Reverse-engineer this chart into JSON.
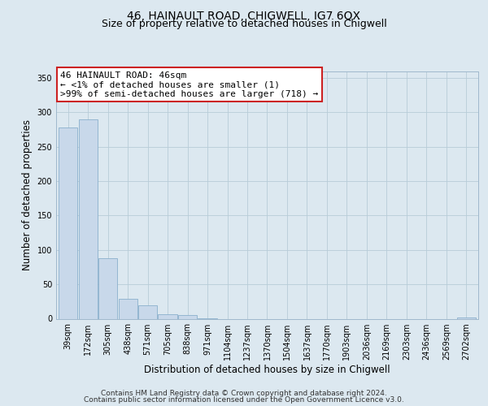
{
  "title": "46, HAINAULT ROAD, CHIGWELL, IG7 6QX",
  "subtitle": "Size of property relative to detached houses in Chigwell",
  "xlabel": "Distribution of detached houses by size in Chigwell",
  "ylabel": "Number of detached properties",
  "bar_labels": [
    "39sqm",
    "172sqm",
    "305sqm",
    "438sqm",
    "571sqm",
    "705sqm",
    "838sqm",
    "971sqm",
    "1104sqm",
    "1237sqm",
    "1370sqm",
    "1504sqm",
    "1637sqm",
    "1770sqm",
    "1903sqm",
    "2036sqm",
    "2169sqm",
    "2303sqm",
    "2436sqm",
    "2569sqm",
    "2702sqm"
  ],
  "bar_values": [
    278,
    290,
    88,
    29,
    19,
    7,
    5,
    1,
    0,
    0,
    0,
    0,
    0,
    0,
    0,
    0,
    0,
    0,
    0,
    0,
    2
  ],
  "bar_color": "#c8d8ea",
  "bar_edge_color": "#8ab0cc",
  "annotation_line1": "46 HAINAULT ROAD: 46sqm",
  "annotation_line2": "← <1% of detached houses are smaller (1)",
  "annotation_line3": ">99% of semi-detached houses are larger (718) →",
  "ylim": [
    0,
    360
  ],
  "yticks": [
    0,
    50,
    100,
    150,
    200,
    250,
    300,
    350
  ],
  "footer_line1": "Contains HM Land Registry data © Crown copyright and database right 2024.",
  "footer_line2": "Contains public sector information licensed under the Open Government Licence v3.0.",
  "bg_color": "#dce8f0",
  "plot_bg_color": "#dce8f0",
  "title_fontsize": 10,
  "subtitle_fontsize": 9,
  "axis_label_fontsize": 8.5,
  "tick_fontsize": 7,
  "footer_fontsize": 6.5,
  "annotation_fontsize": 8
}
